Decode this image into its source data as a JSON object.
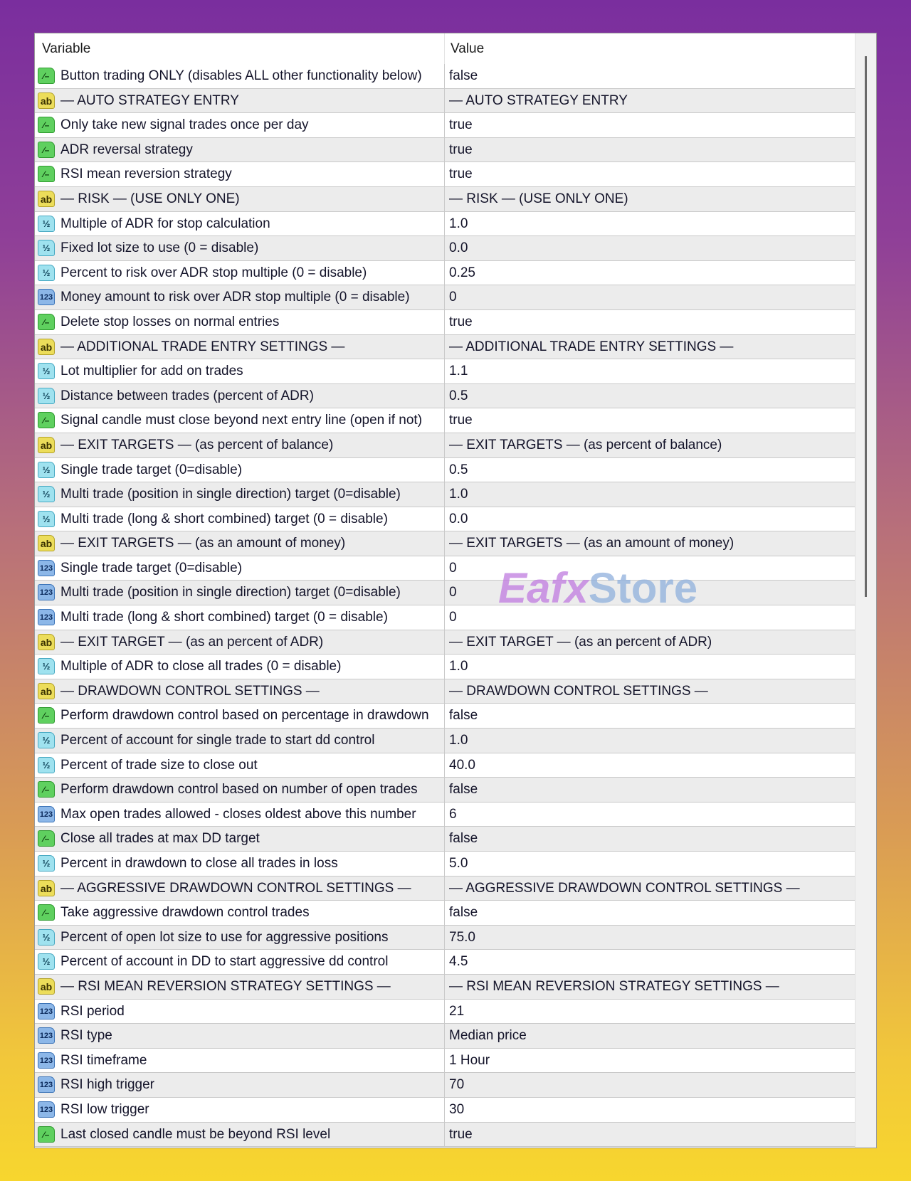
{
  "header": {
    "variable": "Variable",
    "value": "Value"
  },
  "watermark": {
    "part1": "Eafx",
    "part2": "Store"
  },
  "icon_types": {
    "bool": "bool-chart-icon",
    "string": "ab-string-icon",
    "double": "half-double-icon",
    "int": "123-integer-icon"
  },
  "rows": [
    {
      "type": "bool",
      "variable": "Button trading ONLY (disables ALL other functionality below)",
      "value": "false"
    },
    {
      "type": "string",
      "variable": "— AUTO STRATEGY ENTRY",
      "value": "— AUTO STRATEGY ENTRY"
    },
    {
      "type": "bool",
      "variable": "Only take new signal trades once per day",
      "value": "true"
    },
    {
      "type": "bool",
      "variable": "ADR reversal strategy",
      "value": "true"
    },
    {
      "type": "bool",
      "variable": "RSI mean reversion strategy",
      "value": "true"
    },
    {
      "type": "string",
      "variable": "— RISK — (USE ONLY ONE)",
      "value": "— RISK — (USE ONLY ONE)"
    },
    {
      "type": "double",
      "variable": "Multiple of ADR for stop calculation",
      "value": "1.0"
    },
    {
      "type": "double",
      "variable": "Fixed lot size to use (0 = disable)",
      "value": "0.0"
    },
    {
      "type": "double",
      "variable": "Percent to risk over ADR stop multiple (0 = disable)",
      "value": "0.25"
    },
    {
      "type": "int",
      "variable": "Money amount to risk over ADR stop multiple (0 = disable)",
      "value": "0"
    },
    {
      "type": "bool",
      "variable": "Delete stop losses on normal entries",
      "value": "true"
    },
    {
      "type": "string",
      "variable": "— ADDITIONAL TRADE ENTRY SETTINGS —",
      "value": "— ADDITIONAL TRADE ENTRY SETTINGS —"
    },
    {
      "type": "double",
      "variable": "Lot multiplier for add on trades",
      "value": "1.1"
    },
    {
      "type": "double",
      "variable": "Distance between trades (percent of ADR)",
      "value": "0.5"
    },
    {
      "type": "bool",
      "variable": "Signal candle must close beyond next entry line (open if not)",
      "value": "true"
    },
    {
      "type": "string",
      "variable": "— EXIT TARGETS — (as percent of balance)",
      "value": "— EXIT TARGETS — (as percent of balance)"
    },
    {
      "type": "double",
      "variable": "Single trade target (0=disable)",
      "value": "0.5"
    },
    {
      "type": "double",
      "variable": "Multi trade (position in single direction) target (0=disable)",
      "value": "1.0"
    },
    {
      "type": "double",
      "variable": "Multi trade (long & short combined) target (0 = disable)",
      "value": "0.0"
    },
    {
      "type": "string",
      "variable": "— EXIT TARGETS — (as an amount of money)",
      "value": "— EXIT TARGETS — (as an amount of money)"
    },
    {
      "type": "int",
      "variable": "Single trade target (0=disable)",
      "value": "0"
    },
    {
      "type": "int",
      "variable": "Multi trade (position in single direction) target (0=disable)",
      "value": "0"
    },
    {
      "type": "int",
      "variable": "Multi trade (long & short combined) target (0 = disable)",
      "value": "0"
    },
    {
      "type": "string",
      "variable": "— EXIT TARGET — (as an percent of ADR)",
      "value": "— EXIT TARGET — (as an percent of ADR)"
    },
    {
      "type": "double",
      "variable": "Multiple of ADR to close all trades (0 = disable)",
      "value": "1.0"
    },
    {
      "type": "string",
      "variable": "— DRAWDOWN CONTROL SETTINGS —",
      "value": "— DRAWDOWN CONTROL SETTINGS —"
    },
    {
      "type": "bool",
      "variable": "Perform drawdown control based on percentage in drawdown",
      "value": "false"
    },
    {
      "type": "double",
      "variable": "Percent of account for single trade to start dd control",
      "value": "1.0"
    },
    {
      "type": "double",
      "variable": "Percent of trade size to close out",
      "value": "40.0"
    },
    {
      "type": "bool",
      "variable": "Perform drawdown control based on number of open trades",
      "value": "false"
    },
    {
      "type": "int",
      "variable": "Max open trades allowed - closes oldest above this number",
      "value": "6"
    },
    {
      "type": "bool",
      "variable": "Close all trades at max DD target",
      "value": "false"
    },
    {
      "type": "double",
      "variable": "Percent in drawdown to close all trades in loss",
      "value": "5.0"
    },
    {
      "type": "string",
      "variable": "— AGGRESSIVE DRAWDOWN CONTROL SETTINGS —",
      "value": "— AGGRESSIVE DRAWDOWN CONTROL SETTINGS —"
    },
    {
      "type": "bool",
      "variable": "Take aggressive drawdown control trades",
      "value": "false"
    },
    {
      "type": "double",
      "variable": "Percent of open lot size to use for aggressive positions",
      "value": "75.0"
    },
    {
      "type": "double",
      "variable": "Percent of account in DD to start aggressive dd control",
      "value": "4.5"
    },
    {
      "type": "string",
      "variable": "— RSI MEAN REVERSION STRATEGY SETTINGS —",
      "value": "— RSI MEAN REVERSION STRATEGY SETTINGS —"
    },
    {
      "type": "int",
      "variable": "RSI period",
      "value": "21"
    },
    {
      "type": "int",
      "variable": "RSI type",
      "value": "Median price"
    },
    {
      "type": "int",
      "variable": "RSI timeframe",
      "value": "1 Hour"
    },
    {
      "type": "int",
      "variable": "RSI high trigger",
      "value": "70"
    },
    {
      "type": "int",
      "variable": "RSI low trigger",
      "value": "30"
    },
    {
      "type": "bool",
      "variable": "Last closed candle must be beyond RSI level",
      "value": "true"
    }
  ]
}
